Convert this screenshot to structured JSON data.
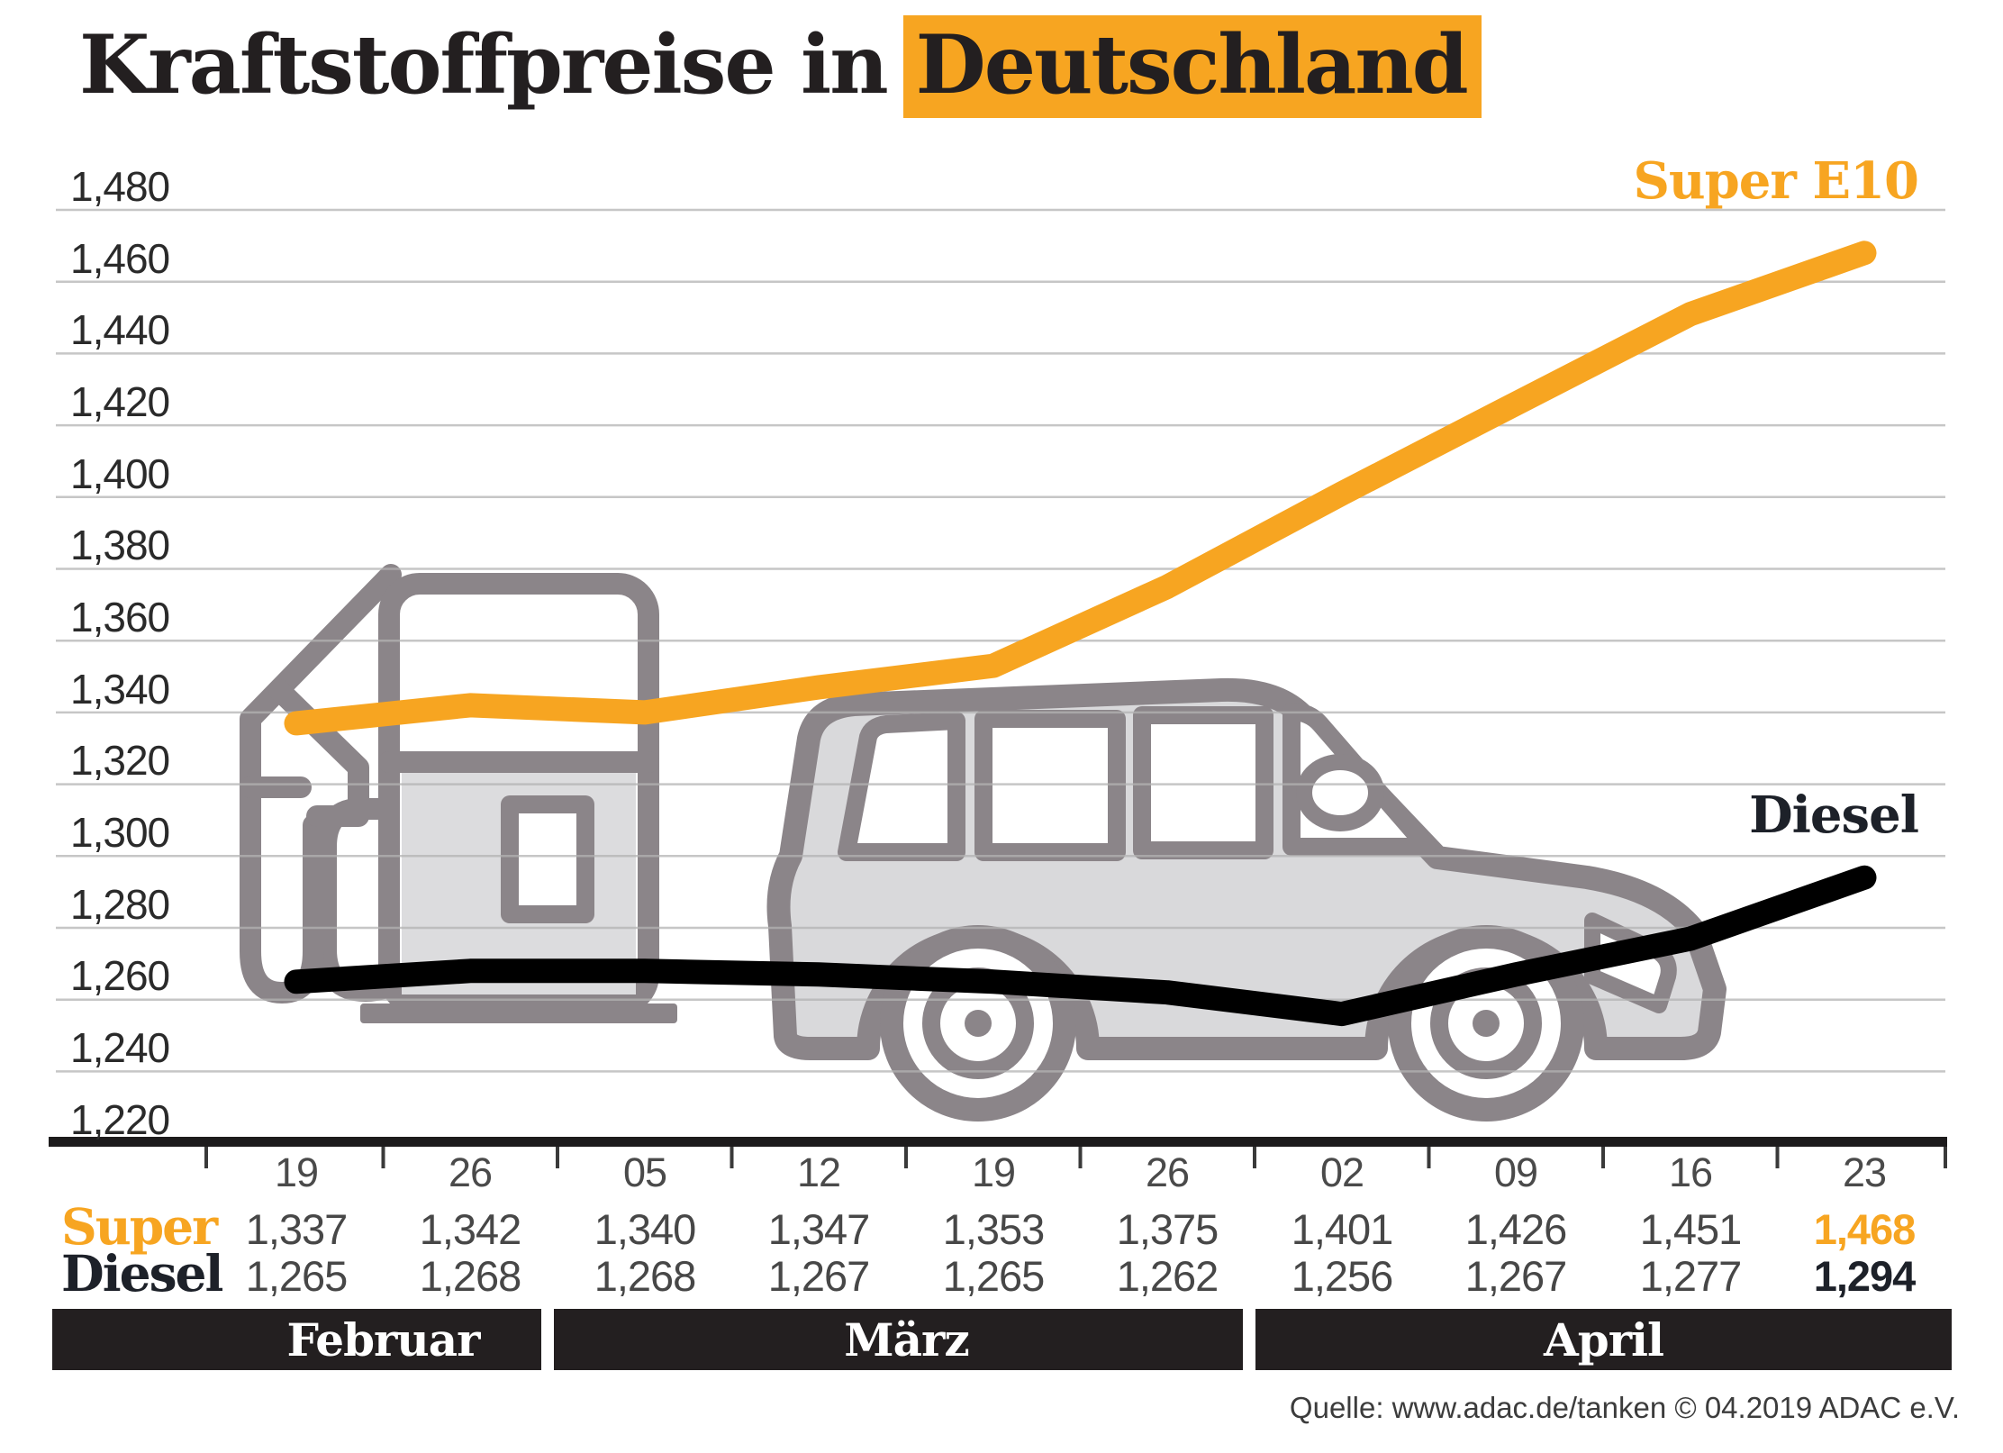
{
  "title": {
    "prefix": "Kraftstoffpreise in",
    "highlight": "Deutschland"
  },
  "series_labels": {
    "super": "Super E10",
    "diesel": "Diesel"
  },
  "table": {
    "row_labels": {
      "super": "Super",
      "diesel": "Diesel"
    },
    "dates": [
      "19",
      "26",
      "05",
      "12",
      "19",
      "26",
      "02",
      "09",
      "16",
      "23"
    ],
    "super_values": [
      "1,337",
      "1,342",
      "1,340",
      "1,347",
      "1,353",
      "1,375",
      "1,401",
      "1,426",
      "1,451",
      "1,468"
    ],
    "diesel_values": [
      "1,265",
      "1,268",
      "1,268",
      "1,267",
      "1,265",
      "1,262",
      "1,256",
      "1,267",
      "1,277",
      "1,294"
    ]
  },
  "months": [
    "Februar",
    "März",
    "April"
  ],
  "source": "Quelle: www.adac.de/tanken   © 04.2019  ADAC e.V.",
  "colors": {
    "accent_orange": "#F7A521",
    "line_black": "#000000",
    "icon_gray": "#8B8589",
    "car_fill": "#D9D9DB",
    "grid_gray": "#B3B3B3",
    "month_bar_bg": "#231F20",
    "axis_black": "#1D1B1C"
  },
  "chart_data": {
    "type": "line",
    "title": "Kraftstoffpreise in Deutschland",
    "x_tick_labels": [
      "19",
      "26",
      "05",
      "12",
      "19",
      "26",
      "02",
      "09",
      "16",
      "23"
    ],
    "month_groups": [
      {
        "label": "Februar",
        "columns": [
          0,
          1
        ]
      },
      {
        "label": "März",
        "columns": [
          2,
          5
        ]
      },
      {
        "label": "April",
        "columns": [
          6,
          9
        ]
      }
    ],
    "y_ticks": [
      "1,480",
      "1,460",
      "1,440",
      "1,420",
      "1,400",
      "1,380",
      "1,360",
      "1,340",
      "1,320",
      "1,300",
      "1,280",
      "1,260",
      "1,240",
      "1,220"
    ],
    "ylim": [
      1.22,
      1.48
    ],
    "y_step": 0.02,
    "grid": true,
    "legend_position": "labels-at-line-ends",
    "series": [
      {
        "name": "Super E10",
        "color": "#F7A521",
        "values": [
          1.337,
          1.342,
          1.34,
          1.347,
          1.353,
          1.375,
          1.401,
          1.426,
          1.451,
          1.468
        ]
      },
      {
        "name": "Diesel",
        "color": "#000000",
        "values": [
          1.265,
          1.268,
          1.268,
          1.267,
          1.265,
          1.262,
          1.256,
          1.267,
          1.277,
          1.294
        ]
      }
    ]
  }
}
